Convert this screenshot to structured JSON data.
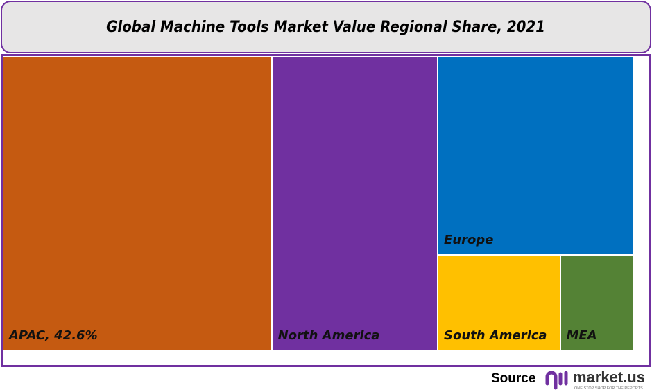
{
  "chart_data": {
    "type": "treemap",
    "title": "Global Machine Tools Market Value Regional Share, 2021",
    "tiles": [
      {
        "label": "APAC, 42.6%",
        "name": "APAC",
        "value": 42.6,
        "color": "#C55A11"
      },
      {
        "label": "North America",
        "name": "North America",
        "value": 26.3,
        "color": "#7030A0"
      },
      {
        "label": "Europe",
        "name": "Europe",
        "value": 21.0,
        "color": "#0070C0"
      },
      {
        "label": "South America",
        "name": "South America",
        "value": 6.3,
        "color": "#FFC000"
      },
      {
        "label": "MEA",
        "name": "MEA",
        "value": 3.8,
        "color": "#548235"
      }
    ]
  },
  "footer": {
    "source_label": "Source",
    "logo_text": "market.us",
    "logo_tagline": "ONE STOP SHOP FOR THE REPORTS"
  },
  "colors": {
    "border": "#7030A0",
    "title_bg": "#E7E6E6"
  }
}
